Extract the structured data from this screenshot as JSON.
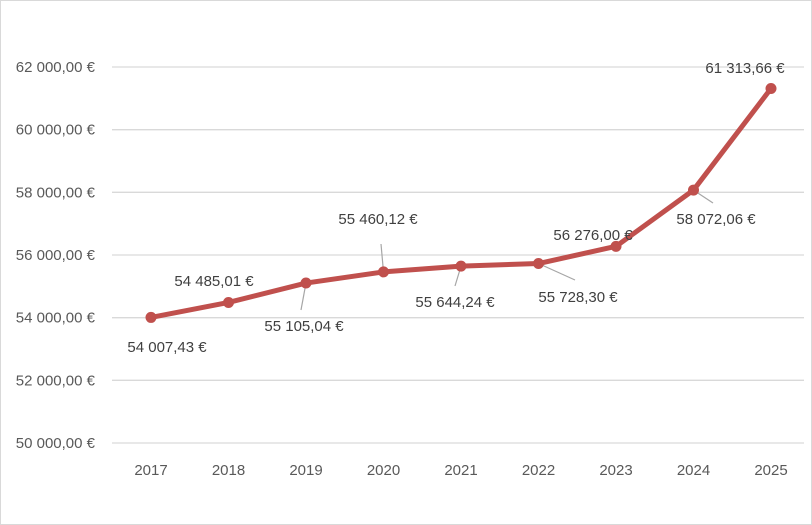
{
  "chart_data": {
    "type": "line",
    "title": "",
    "xlabel": "",
    "ylabel": "",
    "categories": [
      "2017",
      "2018",
      "2019",
      "2020",
      "2021",
      "2022",
      "2023",
      "2024",
      "2025"
    ],
    "series": [
      {
        "values": [
          54007.43,
          54485.01,
          55105.04,
          55460.12,
          55644.24,
          55728.3,
          56276.0,
          58072.06,
          61313.66
        ],
        "labels": [
          "54 007,43 €",
          "54 485,01 €",
          "55 105,04 €",
          "55 460,12 €",
          "55 644,24 €",
          "55 728,30 €",
          "56 276,00 €",
          "58 072,06 €",
          "61 313,66 €"
        ],
        "color": "#c0504d"
      }
    ],
    "ylim": [
      50000,
      62000
    ],
    "yticks": [
      50000,
      52000,
      54000,
      56000,
      58000,
      60000,
      62000
    ],
    "ytick_labels": [
      "50 000,00 €",
      "52 000,00 €",
      "54 000,00 €",
      "56 000,00 €",
      "58 000,00 €",
      "60 000,00 €",
      "62 000,00 €"
    ],
    "grid": true,
    "legend": "none",
    "gridline_color": "#d9d9d9",
    "leader_line_color": "#a6a6a6"
  }
}
